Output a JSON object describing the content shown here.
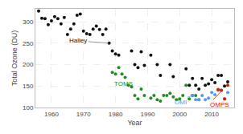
{
  "chart_data": {
    "type": "scatter",
    "xlabel": "Year",
    "ylabel": "Total Ozone (DU)",
    "xlim": [
      1955,
      2017
    ],
    "ylim": [
      100,
      330
    ],
    "xticks": [
      1960,
      1970,
      1980,
      1990,
      2000,
      2010
    ],
    "yticks": [
      100,
      150,
      200,
      250,
      300
    ],
    "grid": true,
    "series": [
      {
        "name": "Halley",
        "color": "#111111",
        "x": [
          1956,
          1957,
          1958,
          1959,
          1960,
          1961,
          1962,
          1963,
          1964,
          1965,
          1966,
          1967,
          1968,
          1969,
          1970,
          1971,
          1972,
          1973,
          1974,
          1975,
          1976,
          1977,
          1978,
          1979,
          1980,
          1981,
          1985,
          1986,
          1987,
          1988,
          1989,
          1991,
          1993,
          1994,
          1997,
          1998,
          2002,
          2003,
          2004,
          2005,
          2006,
          2007,
          2008,
          2009,
          2010,
          2011,
          2012,
          2013,
          2014,
          2015
        ],
        "values": [
          325,
          308,
          307,
          293,
          302,
          312,
          307,
          295,
          310,
          270,
          283,
          295,
          315,
          318,
          278,
          272,
          270,
          283,
          290,
          282,
          270,
          283,
          250,
          232,
          225,
          222,
          232,
          200,
          193,
          230,
          198,
          222,
          200,
          175,
          200,
          172,
          190,
          152,
          168,
          152,
          143,
          168,
          152,
          155,
          165,
          158,
          175,
          175,
          150,
          160
        ]
      },
      {
        "name": "TOMS",
        "color": "#228B22",
        "x": [
          1979,
          1980,
          1981,
          1982,
          1983,
          1984,
          1985,
          1986,
          1987,
          1988,
          1989,
          1991,
          1992,
          1993,
          1994,
          1995,
          1996,
          1997,
          1998,
          1999,
          2000,
          2001,
          2002,
          2003,
          2004,
          2005,
          2006
        ],
        "values": [
          182,
          178,
          193,
          178,
          170,
          152,
          148,
          128,
          120,
          143,
          128,
          122,
          128,
          118,
          115,
          128,
          128,
          133,
          125,
          118,
          120,
          128,
          152,
          120,
          128,
          128,
          118
        ]
      },
      {
        "name": "OMI",
        "color": "#5599EE",
        "x": [
          2004,
          2005,
          2006,
          2007,
          2008,
          2009,
          2010,
          2011,
          2012,
          2013,
          2014,
          2015
        ],
        "values": [
          128,
          118,
          118,
          128,
          118,
          122,
          135,
          130,
          140,
          140,
          120,
          135
        ]
      },
      {
        "name": "OMPS",
        "color": "#CC2200",
        "x": [
          2012,
          2013,
          2014,
          2015
        ],
        "values": [
          142,
          140,
          120,
          152
        ]
      }
    ],
    "annotations": [
      {
        "text": "Halley",
        "x": 1978,
        "y": 250,
        "text_x": 1965,
        "text_y": 257,
        "color": "#111111"
      },
      {
        "text": "TOMS",
        "x": 1984,
        "y": 149,
        "text_x": 1979,
        "text_y": 155,
        "color": "#228B22"
      },
      {
        "text": "OMI",
        "x": 2004,
        "y": 128,
        "text_x": 1998,
        "text_y": 113,
        "color": "#5599EE"
      },
      {
        "text": "OMPS",
        "x": 2013,
        "y": 138,
        "text_x": 2009,
        "text_y": 107,
        "color": "#CC2200"
      }
    ]
  }
}
